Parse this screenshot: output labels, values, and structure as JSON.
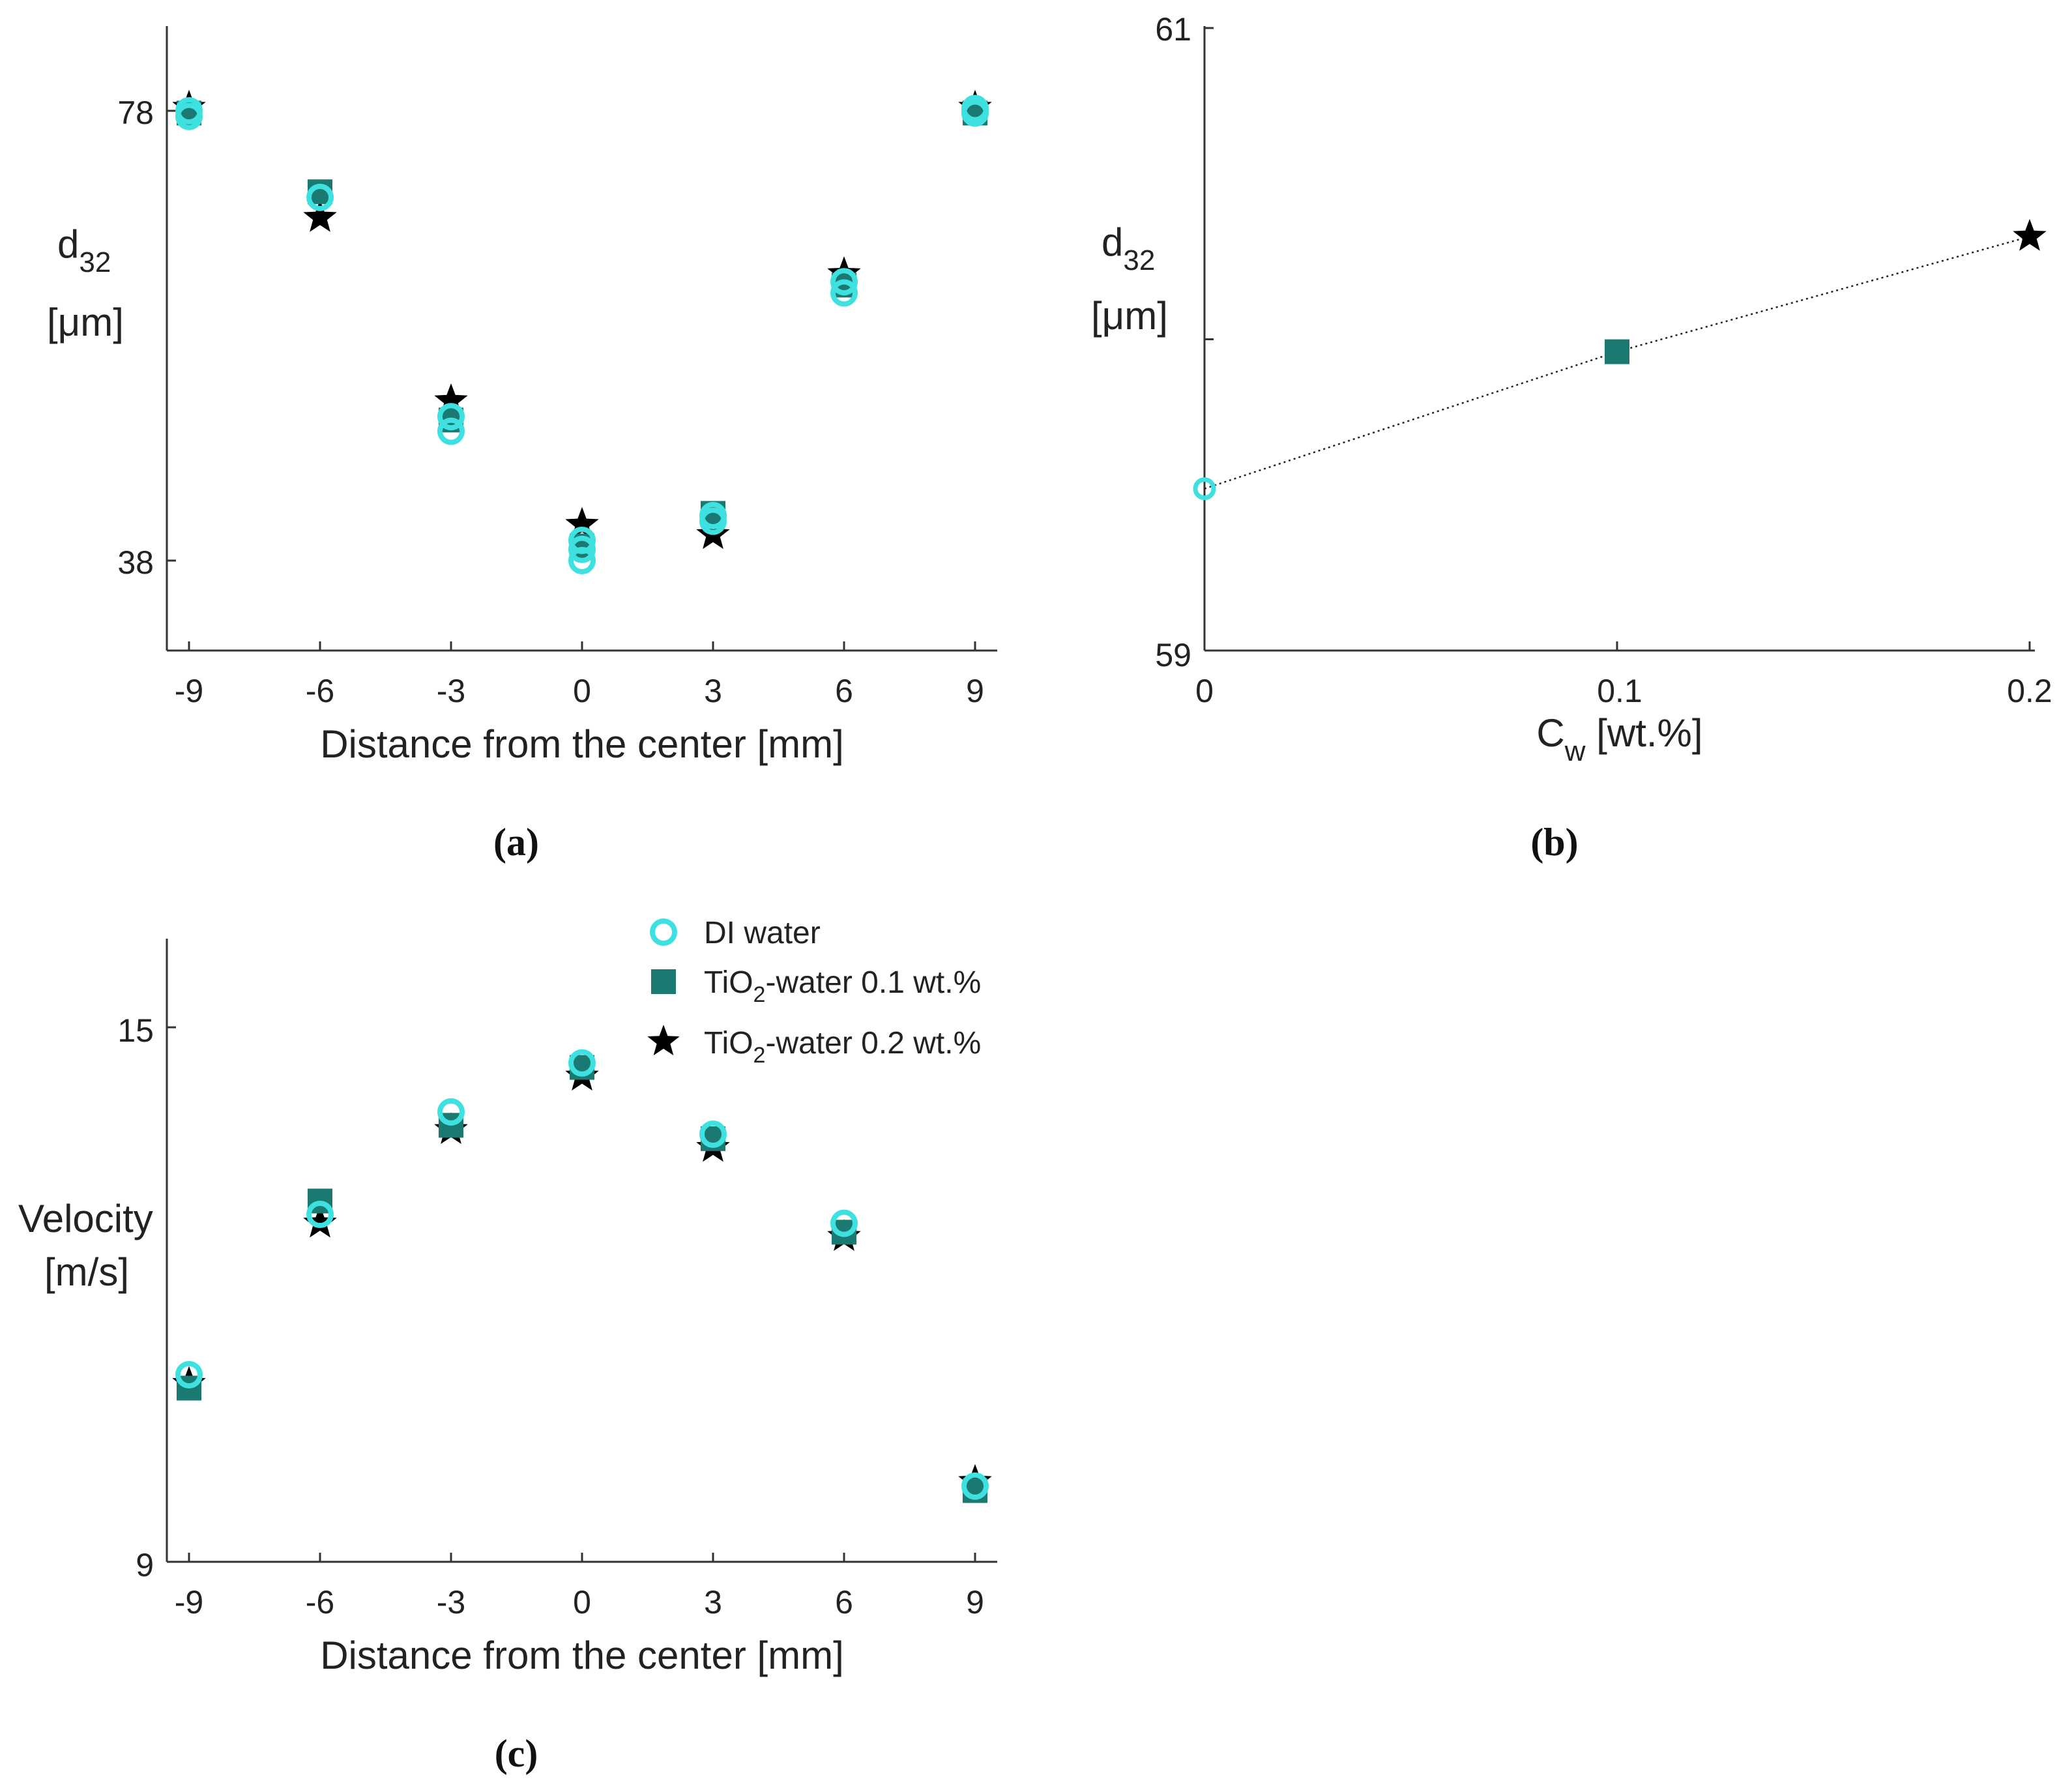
{
  "colors": {
    "di_water": "#3ee0e0",
    "tio2_01": "#1a7a72",
    "tio2_02": "#000000",
    "axis": "#333333"
  },
  "legend": {
    "entries": [
      {
        "label": "DI water",
        "marker": "circle"
      },
      {
        "label_pre": "TiO",
        "label_sub": "2",
        "label_post": "-water 0.1 wt.%",
        "marker": "square"
      },
      {
        "label_pre": "TiO",
        "label_sub": "2",
        "label_post": "-water 0.2 wt.%",
        "marker": "star"
      }
    ]
  },
  "chart_data": [
    {
      "id": "a",
      "type": "scatter",
      "caption": "(a)",
      "xlabel": "Distance from the center [mm]",
      "ylabel_main": "d",
      "ylabel_sub": "32",
      "ylabel_line2": "[μm]",
      "xticks": [
        "-9",
        "-6",
        "-3",
        "0",
        "3",
        "6",
        "9"
      ],
      "yticks": [
        "78",
        "38"
      ],
      "xlim": [
        -9.5,
        9.5
      ],
      "ylim": [
        30,
        85
      ],
      "series": [
        {
          "key": "di_water",
          "x": [
            -9,
            -9,
            -6,
            -3,
            -3,
            0,
            0,
            0,
            3,
            3,
            6,
            6,
            9,
            9
          ],
          "y": [
            77.5,
            78,
            70.3,
            49.5,
            50.8,
            38,
            39,
            39.8,
            41.5,
            42,
            61.8,
            62.8,
            78.2,
            77.8
          ]
        },
        {
          "key": "tio2_01",
          "x": [
            -9,
            -6,
            -3,
            0,
            3,
            6,
            9
          ],
          "y": [
            77.8,
            70.8,
            50.5,
            39.3,
            42.2,
            62.5,
            77.8
          ]
        },
        {
          "key": "tio2_02",
          "x": [
            -9,
            -6,
            -3,
            0,
            3,
            6,
            9
          ],
          "y": [
            78.3,
            68.5,
            52.2,
            41.2,
            40.3,
            63.5,
            78.3
          ]
        }
      ]
    },
    {
      "id": "b",
      "type": "line",
      "caption": "(b)",
      "xlabel_main": "C",
      "xlabel_sub": "w",
      "xlabel_post": " [wt.%]",
      "ylabel_main": "d",
      "ylabel_sub": "32",
      "ylabel_line2": "[μm]",
      "xticks": [
        "0",
        "0.1",
        "0.2"
      ],
      "yticks": [
        "61",
        "59"
      ],
      "xlim": [
        0,
        0.2
      ],
      "ylim": [
        59,
        61
      ],
      "points": [
        {
          "key": "di_water",
          "x": 0,
          "y": 59.52
        },
        {
          "key": "tio2_01",
          "x": 0.1,
          "y": 59.96
        },
        {
          "key": "tio2_02",
          "x": 0.2,
          "y": 60.33
        }
      ]
    },
    {
      "id": "c",
      "type": "scatter",
      "caption": "(c)",
      "xlabel": "Distance from the center [mm]",
      "ylabel_line1": "Velocity",
      "ylabel_line2": "[m/s]",
      "xticks": [
        "-9",
        "-6",
        "-3",
        "0",
        "3",
        "6",
        "9"
      ],
      "yticks": [
        "15",
        "9"
      ],
      "xlim": [
        -9.5,
        9.5
      ],
      "ylim": [
        9,
        16
      ],
      "series": [
        {
          "key": "di_water",
          "x": [
            -9,
            -6,
            -3,
            0,
            3,
            6,
            9
          ],
          "y": [
            11.1,
            12.9,
            14.05,
            14.6,
            13.8,
            12.8,
            9.85
          ]
        },
        {
          "key": "tio2_01",
          "x": [
            -9,
            -6,
            -3,
            0,
            3,
            6,
            9
          ],
          "y": [
            10.95,
            13.05,
            13.9,
            14.55,
            13.75,
            12.7,
            9.8
          ]
        },
        {
          "key": "tio2_02",
          "x": [
            -9,
            -6,
            -3,
            0,
            3,
            6,
            9
          ],
          "y": [
            11.0,
            12.8,
            13.85,
            14.45,
            13.65,
            12.65,
            9.9
          ]
        }
      ]
    }
  ]
}
